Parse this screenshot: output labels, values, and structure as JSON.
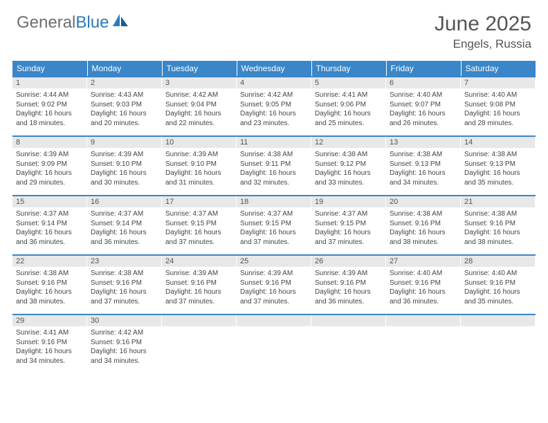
{
  "logo": {
    "text1": "General",
    "text2": "Blue"
  },
  "title": "June 2025",
  "location": "Engels, Russia",
  "colors": {
    "header_bg": "#3a86c8",
    "header_text": "#ffffff",
    "daynum_bg": "#e8e8e8",
    "border": "#3a86c8",
    "body_text": "#444444",
    "title_text": "#555555"
  },
  "weekdays": [
    "Sunday",
    "Monday",
    "Tuesday",
    "Wednesday",
    "Thursday",
    "Friday",
    "Saturday"
  ],
  "days": [
    {
      "n": "1",
      "sr": "4:44 AM",
      "ss": "9:02 PM",
      "dl1": "Daylight: 16 hours",
      "dl2": "and 18 minutes."
    },
    {
      "n": "2",
      "sr": "4:43 AM",
      "ss": "9:03 PM",
      "dl1": "Daylight: 16 hours",
      "dl2": "and 20 minutes."
    },
    {
      "n": "3",
      "sr": "4:42 AM",
      "ss": "9:04 PM",
      "dl1": "Daylight: 16 hours",
      "dl2": "and 22 minutes."
    },
    {
      "n": "4",
      "sr": "4:42 AM",
      "ss": "9:05 PM",
      "dl1": "Daylight: 16 hours",
      "dl2": "and 23 minutes."
    },
    {
      "n": "5",
      "sr": "4:41 AM",
      "ss": "9:06 PM",
      "dl1": "Daylight: 16 hours",
      "dl2": "and 25 minutes."
    },
    {
      "n": "6",
      "sr": "4:40 AM",
      "ss": "9:07 PM",
      "dl1": "Daylight: 16 hours",
      "dl2": "and 26 minutes."
    },
    {
      "n": "7",
      "sr": "4:40 AM",
      "ss": "9:08 PM",
      "dl1": "Daylight: 16 hours",
      "dl2": "and 28 minutes."
    },
    {
      "n": "8",
      "sr": "4:39 AM",
      "ss": "9:09 PM",
      "dl1": "Daylight: 16 hours",
      "dl2": "and 29 minutes."
    },
    {
      "n": "9",
      "sr": "4:39 AM",
      "ss": "9:10 PM",
      "dl1": "Daylight: 16 hours",
      "dl2": "and 30 minutes."
    },
    {
      "n": "10",
      "sr": "4:39 AM",
      "ss": "9:10 PM",
      "dl1": "Daylight: 16 hours",
      "dl2": "and 31 minutes."
    },
    {
      "n": "11",
      "sr": "4:38 AM",
      "ss": "9:11 PM",
      "dl1": "Daylight: 16 hours",
      "dl2": "and 32 minutes."
    },
    {
      "n": "12",
      "sr": "4:38 AM",
      "ss": "9:12 PM",
      "dl1": "Daylight: 16 hours",
      "dl2": "and 33 minutes."
    },
    {
      "n": "13",
      "sr": "4:38 AM",
      "ss": "9:13 PM",
      "dl1": "Daylight: 16 hours",
      "dl2": "and 34 minutes."
    },
    {
      "n": "14",
      "sr": "4:38 AM",
      "ss": "9:13 PM",
      "dl1": "Daylight: 16 hours",
      "dl2": "and 35 minutes."
    },
    {
      "n": "15",
      "sr": "4:37 AM",
      "ss": "9:14 PM",
      "dl1": "Daylight: 16 hours",
      "dl2": "and 36 minutes."
    },
    {
      "n": "16",
      "sr": "4:37 AM",
      "ss": "9:14 PM",
      "dl1": "Daylight: 16 hours",
      "dl2": "and 36 minutes."
    },
    {
      "n": "17",
      "sr": "4:37 AM",
      "ss": "9:15 PM",
      "dl1": "Daylight: 16 hours",
      "dl2": "and 37 minutes."
    },
    {
      "n": "18",
      "sr": "4:37 AM",
      "ss": "9:15 PM",
      "dl1": "Daylight: 16 hours",
      "dl2": "and 37 minutes."
    },
    {
      "n": "19",
      "sr": "4:37 AM",
      "ss": "9:15 PM",
      "dl1": "Daylight: 16 hours",
      "dl2": "and 37 minutes."
    },
    {
      "n": "20",
      "sr": "4:38 AM",
      "ss": "9:16 PM",
      "dl1": "Daylight: 16 hours",
      "dl2": "and 38 minutes."
    },
    {
      "n": "21",
      "sr": "4:38 AM",
      "ss": "9:16 PM",
      "dl1": "Daylight: 16 hours",
      "dl2": "and 38 minutes."
    },
    {
      "n": "22",
      "sr": "4:38 AM",
      "ss": "9:16 PM",
      "dl1": "Daylight: 16 hours",
      "dl2": "and 38 minutes."
    },
    {
      "n": "23",
      "sr": "4:38 AM",
      "ss": "9:16 PM",
      "dl1": "Daylight: 16 hours",
      "dl2": "and 37 minutes."
    },
    {
      "n": "24",
      "sr": "4:39 AM",
      "ss": "9:16 PM",
      "dl1": "Daylight: 16 hours",
      "dl2": "and 37 minutes."
    },
    {
      "n": "25",
      "sr": "4:39 AM",
      "ss": "9:16 PM",
      "dl1": "Daylight: 16 hours",
      "dl2": "and 37 minutes."
    },
    {
      "n": "26",
      "sr": "4:39 AM",
      "ss": "9:16 PM",
      "dl1": "Daylight: 16 hours",
      "dl2": "and 36 minutes."
    },
    {
      "n": "27",
      "sr": "4:40 AM",
      "ss": "9:16 PM",
      "dl1": "Daylight: 16 hours",
      "dl2": "and 36 minutes."
    },
    {
      "n": "28",
      "sr": "4:40 AM",
      "ss": "9:16 PM",
      "dl1": "Daylight: 16 hours",
      "dl2": "and 35 minutes."
    },
    {
      "n": "29",
      "sr": "4:41 AM",
      "ss": "9:16 PM",
      "dl1": "Daylight: 16 hours",
      "dl2": "and 34 minutes."
    },
    {
      "n": "30",
      "sr": "4:42 AM",
      "ss": "9:16 PM",
      "dl1": "Daylight: 16 hours",
      "dl2": "and 34 minutes."
    }
  ],
  "labels": {
    "sunrise_prefix": "Sunrise: ",
    "sunset_prefix": "Sunset: "
  }
}
